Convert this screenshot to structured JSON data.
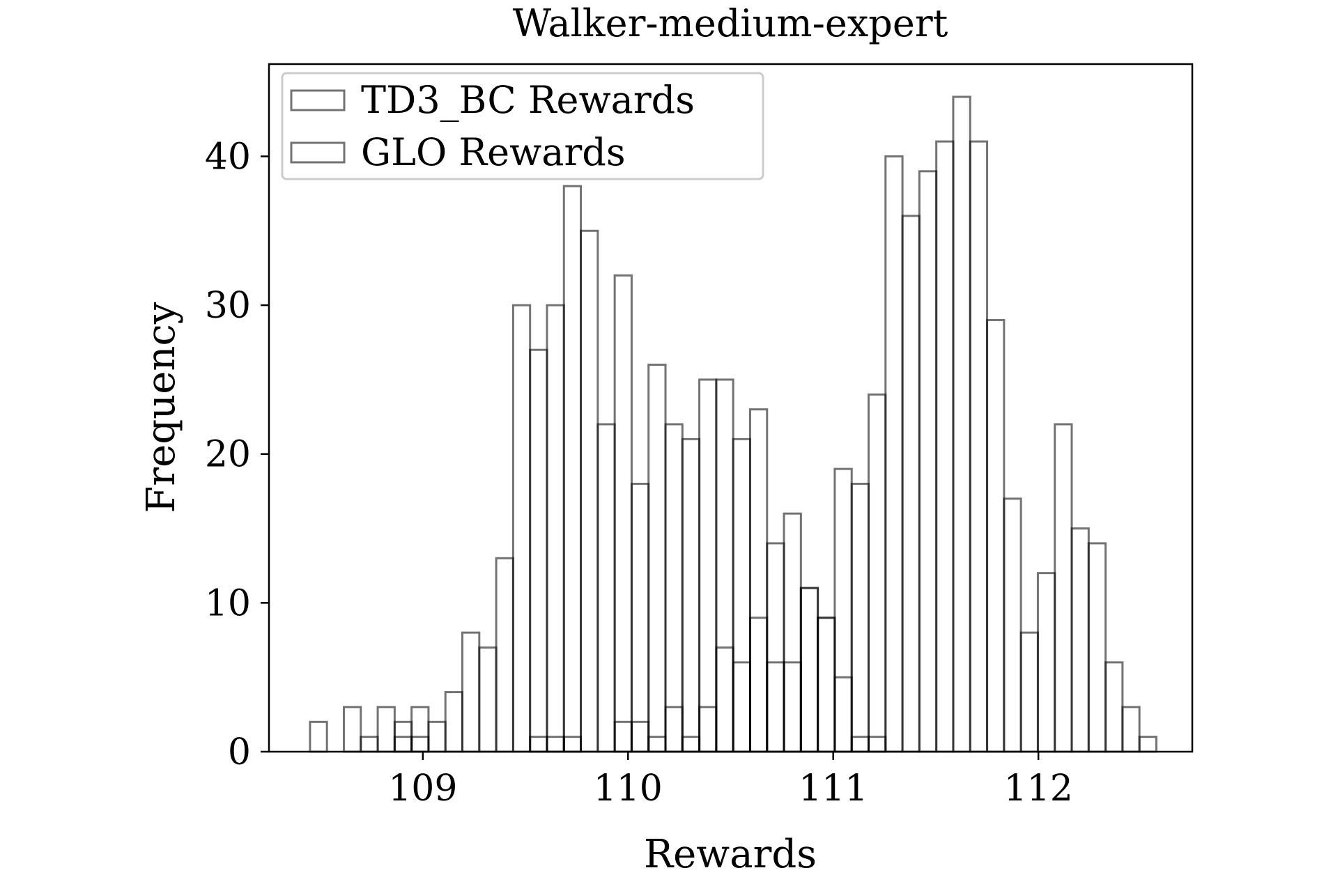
{
  "chart_data": {
    "type": "histogram",
    "title": "Walker-medium-expert",
    "xlabel": "Rewards",
    "ylabel": "Frequency",
    "xlim": [
      108.25,
      112.75
    ],
    "ylim": [
      0,
      46.2
    ],
    "x_ticks": [
      109,
      110,
      111,
      112
    ],
    "y_ticks": [
      0,
      10,
      20,
      30,
      40
    ],
    "grid": false,
    "legend_position": "top-left",
    "bar_style": {
      "fill": "none",
      "stroke": "#000000",
      "stroke_opacity": 0.55
    },
    "series": [
      {
        "name": "TD3_BC Rewards",
        "bin_start": 108.45,
        "bin_width": 0.0825,
        "values": [
          2,
          0,
          3,
          0,
          3,
          2,
          3,
          2,
          4,
          8,
          7,
          13,
          30,
          27,
          30,
          38,
          35,
          22,
          32,
          18,
          26,
          22,
          21,
          25,
          25,
          21,
          23,
          14,
          16,
          11,
          9,
          19,
          18,
          24,
          40,
          36,
          39,
          41,
          44,
          41,
          29,
          17,
          8,
          12,
          22,
          15,
          14,
          6,
          3,
          1
        ]
      },
      {
        "name": "GLO Rewards",
        "bin_start": 108.45,
        "bin_width": 0.0825,
        "values": [
          0,
          0,
          0,
          1,
          0,
          1,
          1,
          0,
          0,
          0,
          0,
          0,
          0,
          1,
          1,
          1,
          0,
          0,
          2,
          2,
          1,
          3,
          1,
          3,
          7,
          6,
          9,
          6,
          6,
          11,
          9,
          5,
          1,
          1,
          0,
          0,
          0,
          0,
          0,
          0,
          0,
          0,
          0,
          0,
          0,
          0,
          0,
          0,
          0,
          0
        ]
      }
    ]
  }
}
